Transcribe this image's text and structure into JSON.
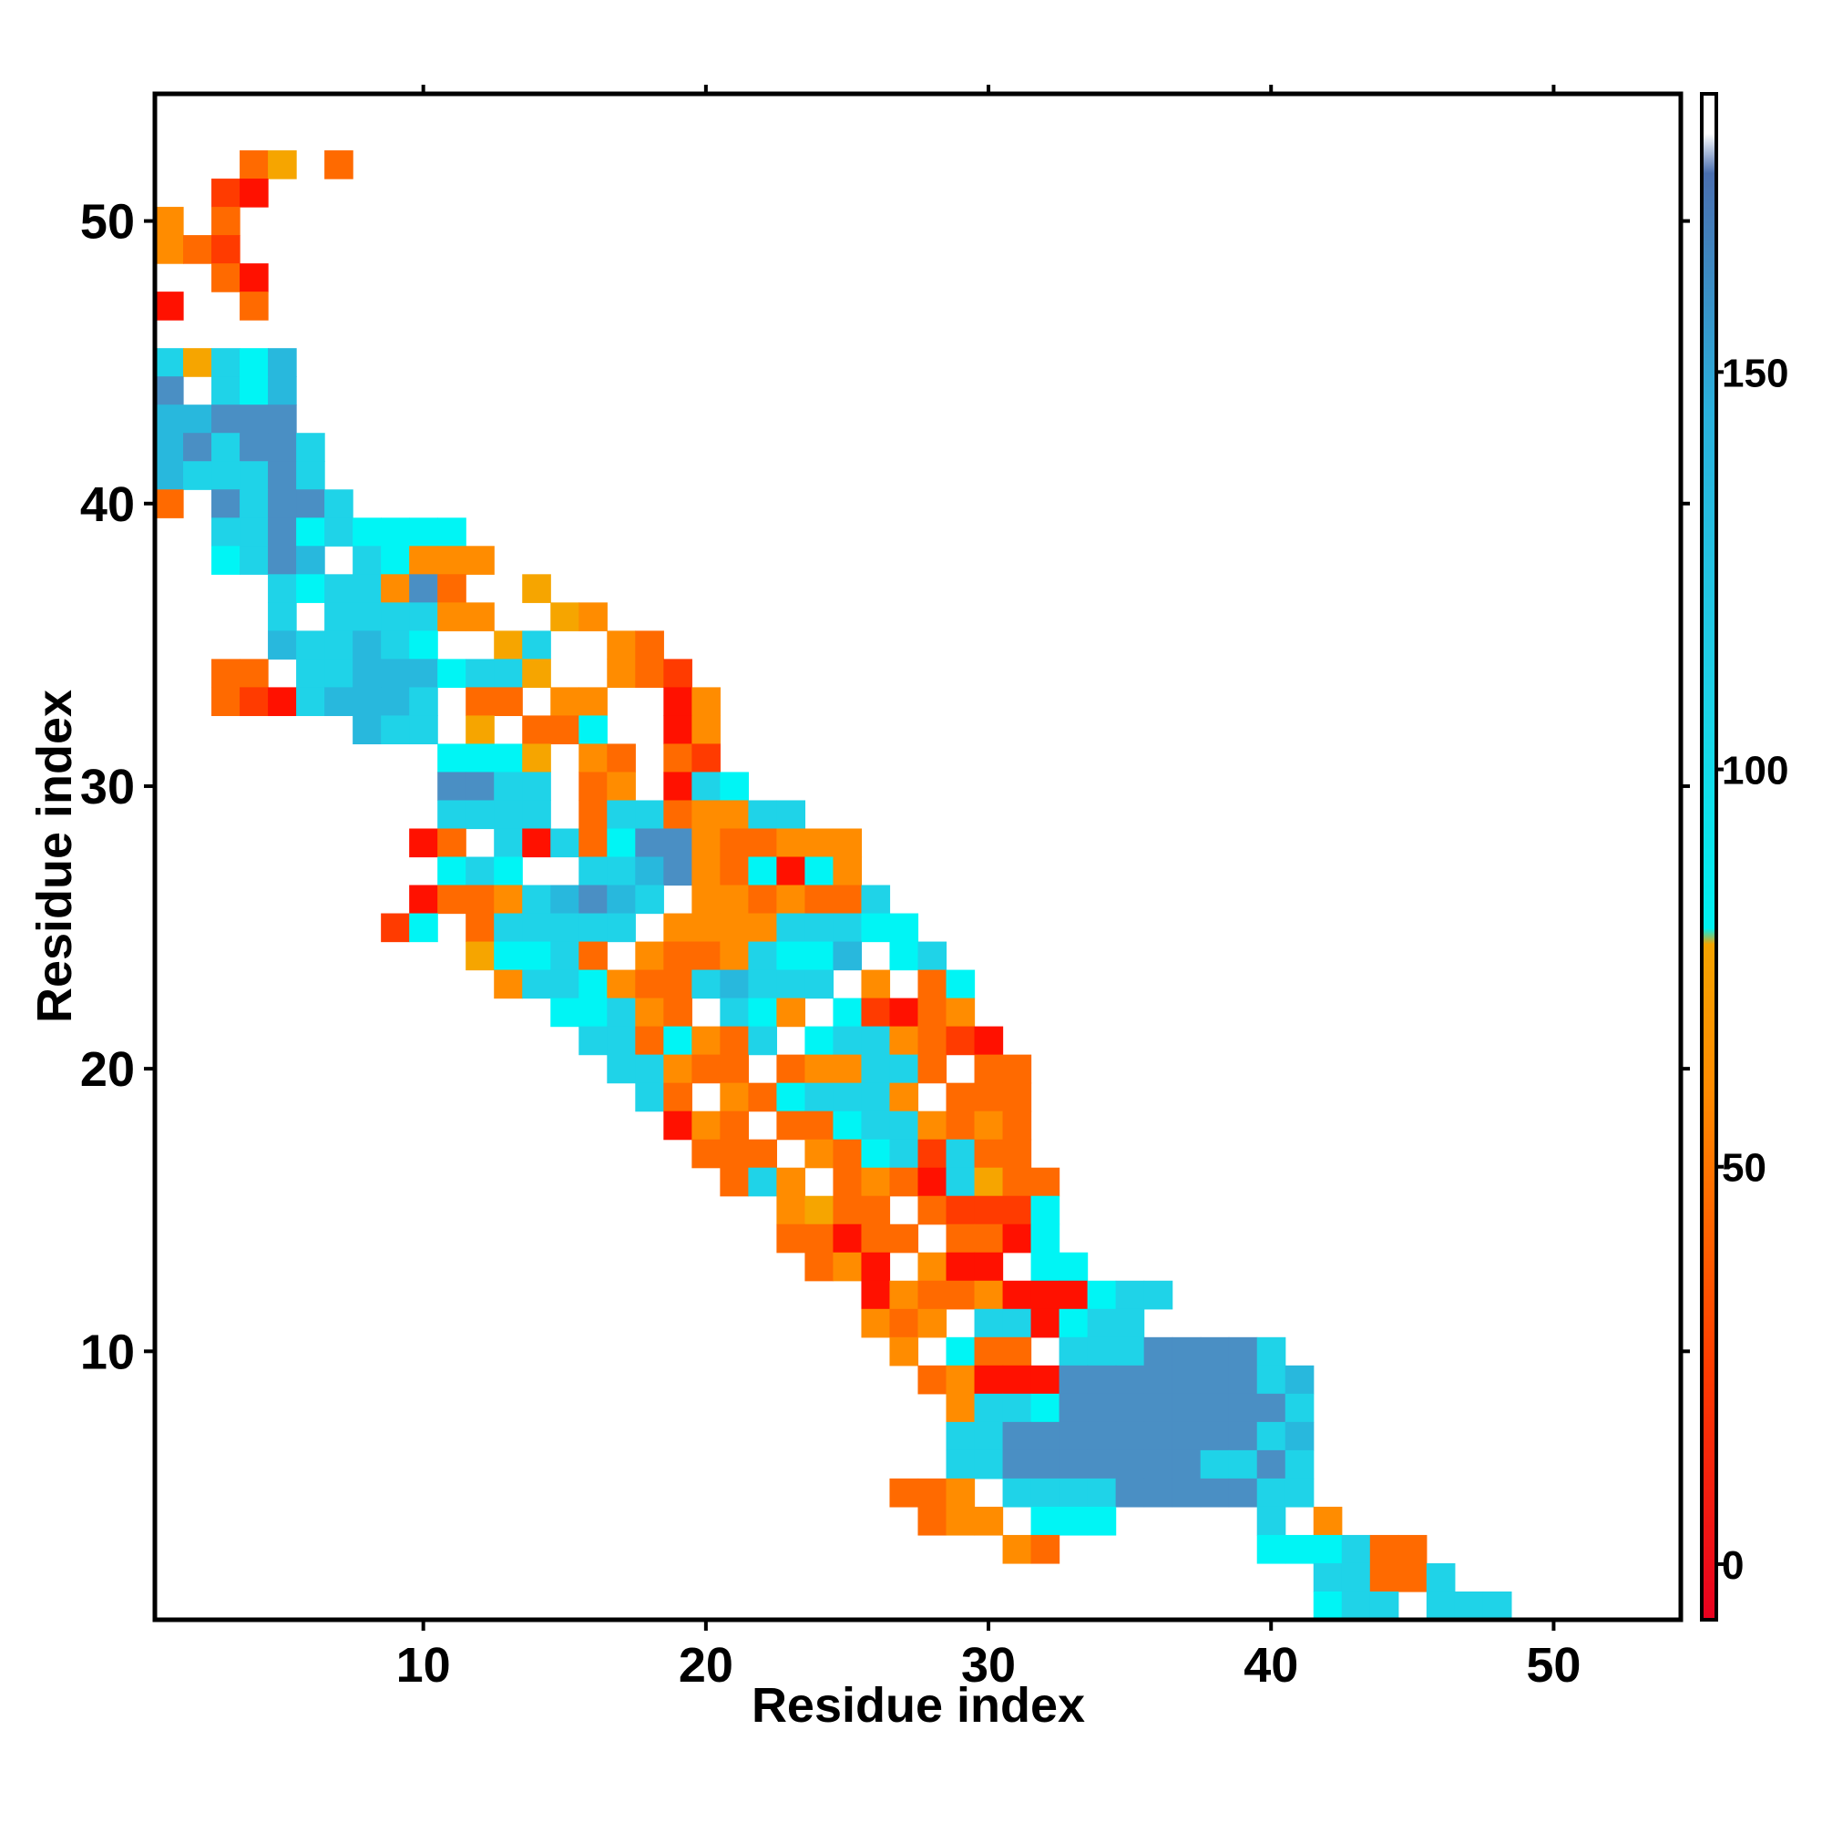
{
  "chart_data": {
    "type": "heatmap",
    "title": "",
    "xlabel": "Residue index",
    "ylabel": "Residue index",
    "xlim": [
      0.5,
      54.5
    ],
    "ylim": [
      0.5,
      54.5
    ],
    "xticks": [
      10,
      20,
      30,
      40,
      50
    ],
    "yticks": [
      10,
      20,
      30,
      40,
      50
    ],
    "colorbar": {
      "ticks": [
        0,
        50,
        100,
        150
      ],
      "range": [
        -7,
        185
      ],
      "stops": [
        {
          "value": -7,
          "color": "#e8001f"
        },
        {
          "value": 25,
          "color": "#ff3d00"
        },
        {
          "value": 60,
          "color": "#ff8c00"
        },
        {
          "value": 78,
          "color": "#f4a300"
        },
        {
          "value": 80,
          "color": "#00f0f0"
        },
        {
          "value": 110,
          "color": "#1ed0e6"
        },
        {
          "value": 145,
          "color": "#2ab0dc"
        },
        {
          "value": 175,
          "color": "#4a6fb0"
        },
        {
          "value": 180,
          "color": "#ffffff"
        }
      ]
    },
    "pixel_colors": {
      "R": "#ff1100",
      "r": "#ff3b00",
      "o": "#ff6a00",
      "a": "#ff8c00",
      "y": "#f6a500",
      "c": "#00f5f5",
      "t": "#1fd3e8",
      "s": "#28b8dd",
      "b": "#4a8fc4"
    },
    "x_residues": [
      1,
      54
    ],
    "y_residues": [
      1,
      54
    ],
    "rows": [
      "..............................................................",
      "...oy.o.......................................................",
      "..rR..........................................................",
      "a.o...........................................................",
      "aor...........................................................",
      "..oR..........................................................",
      "R..o..........................................................",
      "..............................................................",
      "tytcs.........................................................",
      "b.tcs.........................................................",
      "ssbbb.........................................................",
      "sbtbbt........................................................",
      "stttbt........................................................",
      "o.btbbt.......................................................",
      "..ttbctcccc...................................................",
      "..ctbs.tcaaa..................................................",
      "....tcttabo..y................................................",
      "....t.ttttaa..ya..............................................",
      "....sttstc..yt..ao............................................",
      "..oo.ttsssctty..aor...........................................",
      "..orRtssst.oo.aa..Ra..........................................",
      ".......stt.y.ooc..Ra..........................................",
      "..........cccy.ao.or..........................................",
      "..........bbtt.oa.Rtc.........................................",
      "..........tttt.ottoaatt.......................................",
      ".........Ro.tRtocbbaooaaa.....................................",
      "..........ctc..ttsbaocRca.....................................",
      ".........Rooatsbst.aaoaoot....................................",
      "........rc.ottttt.aaaatttcc...................................",
      "...........yccto.aooatccs.ct..................................",
      "............attcaootsttt.a.oc.................................",
      "..............cctao.tca.crRoa.................................",
      "...............ttocaot.cttaorR................................",
      "................ttaoo.oaatto.oo...............................",
      ".................to.aocttta.ooo...............................",
      "..................Rao.oocttaoao...............................",
      "...................ooo.aoctrtoo...............................",
      "....................ota.oaoRtyoo..............................",
      "......................ayoo.orrrc...............................",
      "......................ooRoo.ooRc..............................",
      ".......................oaR.aRR.cc.............................",
      ".........................RaooaRRRctt..........................",
      ".........................aoa.ttRctt...........................",
      "..........................a.coo.tttbbbbt......................",
      "...........................oaRRRbbbbbbbts.....................",
      "............................attcbbbbbbbbt.....................",
      "............................ttbbbbbbbbbts.....................",
      "............................ttbbbbbbbttbt.....................",
      "..........................ooa.ttttbbbbbtt.....................",
      "...........................oaa.ccc.....t.a....................",
      "..............................ao.......ccctoo.................",
      ".........................................ttoot................",
      ".........................................ctt.ttt..............."
    ],
    "cells": []
  }
}
